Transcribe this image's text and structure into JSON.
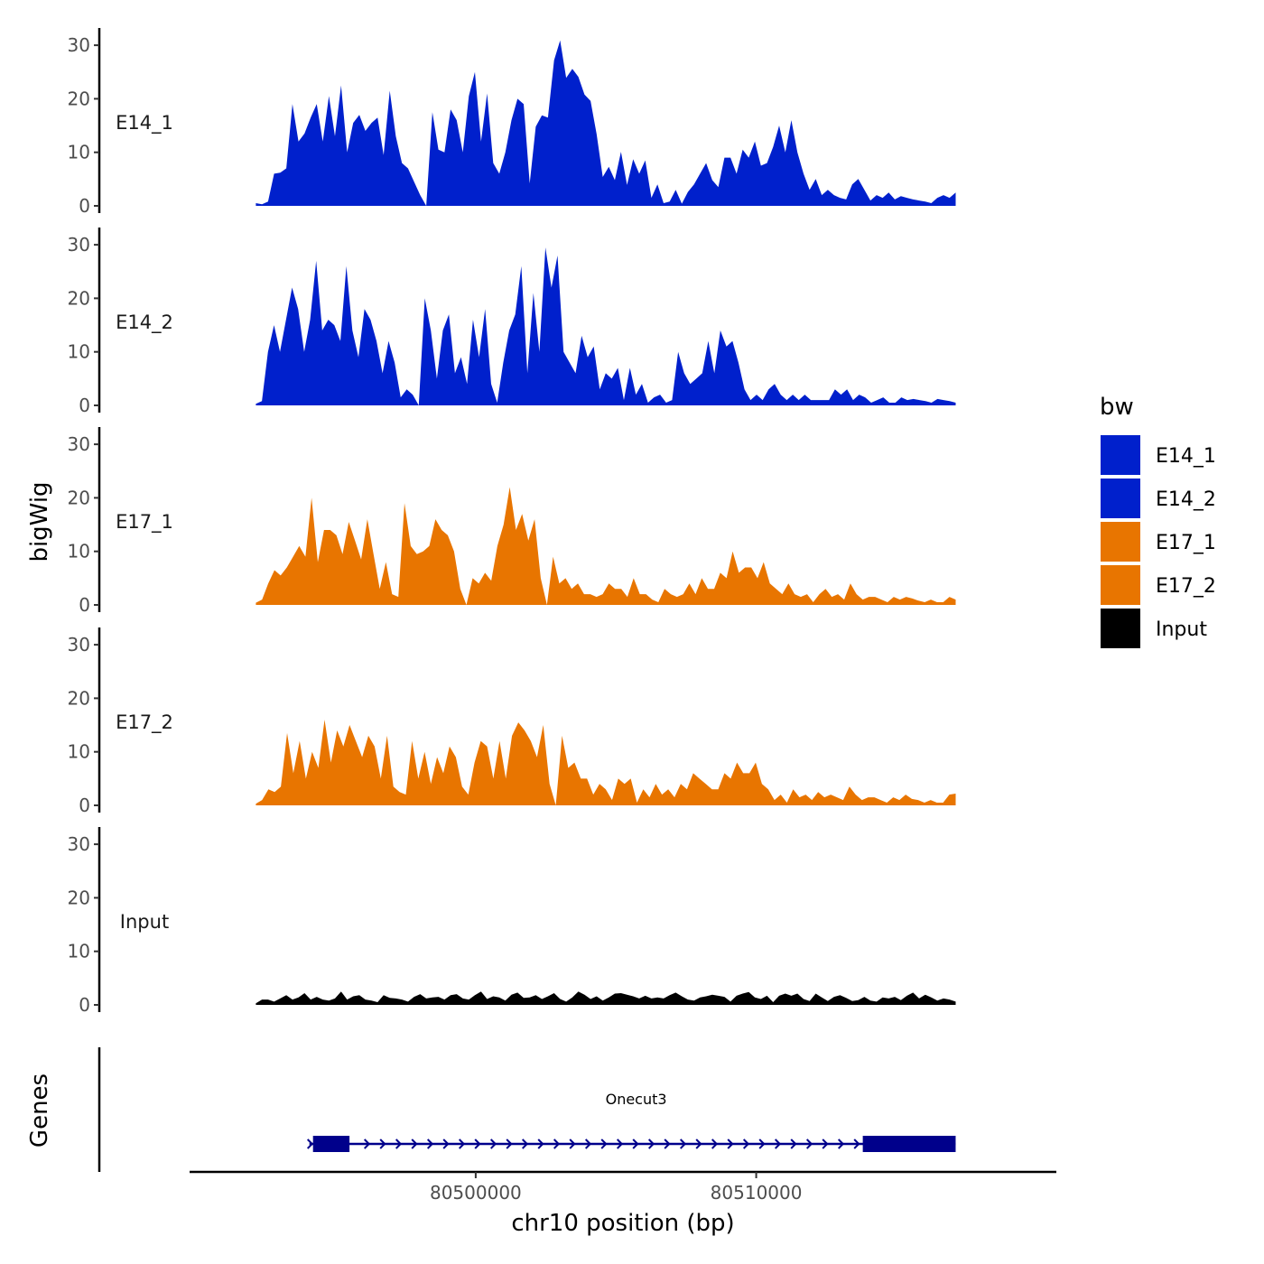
{
  "chart_data": {
    "type": "area",
    "ylabel": "bigWig",
    "genes_label": "Genes",
    "xlabel": "chr10 position (bp)",
    "x_range": [
      80492163,
      80517110
    ],
    "xlim": [
      80489800,
      80520700
    ],
    "x_ticks": [
      80500000,
      80510000
    ],
    "x_tick_labels": [
      "80500000",
      "80510000"
    ],
    "y_range": [
      0,
      31
    ],
    "y_ticks": [
      0,
      10,
      20,
      30
    ],
    "y_tick_labels": [
      "0",
      "10",
      "20",
      "30"
    ],
    "legend_title": "bw",
    "tracks": [
      {
        "name": "E14_1",
        "color": "#0020CC",
        "values": [
          0.5,
          0.3,
          0.8,
          6,
          6.2,
          7,
          19,
          12,
          13.5,
          16.5,
          19,
          12,
          20.5,
          13,
          22.5,
          10,
          15.5,
          17,
          14,
          15.5,
          16.5,
          9.5,
          21.5,
          13,
          8,
          7,
          4.5,
          2,
          0,
          17.5,
          10.5,
          10,
          18,
          16,
          10,
          20.5,
          25,
          12,
          21,
          8,
          6,
          10,
          16,
          20,
          19,
          4.2,
          14.8,
          16.9,
          16.5,
          27.2,
          30.9,
          23.9,
          25.6,
          24.1,
          20.8,
          19.6,
          13.4,
          5.4,
          7.3,
          4.8,
          10.1,
          3.9,
          8.7,
          6,
          8.5,
          1.5,
          4,
          0.5,
          0.8,
          3,
          0.4,
          2.6,
          4,
          6,
          8,
          4.8,
          3.5,
          9,
          9,
          6,
          10.5,
          9,
          12,
          7.5,
          8,
          11,
          15,
          10,
          16,
          10,
          6,
          3,
          5,
          2,
          3,
          2,
          1.5,
          1.2,
          4,
          5,
          3,
          1,
          2,
          1.5,
          2.5,
          1.2,
          1.8,
          1.5,
          1.2,
          1,
          0.8,
          0.5,
          1.5,
          2,
          1.5,
          2.5
        ]
      },
      {
        "name": "E14_2",
        "color": "#0020CC",
        "values": [
          0.3,
          0.8,
          10,
          15,
          10,
          16,
          22,
          18,
          10,
          16,
          27,
          14,
          16,
          15,
          12,
          26,
          14,
          9,
          18,
          16,
          12,
          6,
          12,
          8,
          1.5,
          3,
          2,
          0,
          20,
          14,
          5,
          14,
          17,
          6,
          9,
          4,
          16,
          9,
          18,
          4,
          0.5,
          8,
          14,
          17,
          26,
          6,
          21,
          10,
          29.5,
          22,
          28,
          10,
          8,
          6,
          13,
          9,
          11,
          3,
          6,
          5,
          7,
          1,
          7,
          2,
          4,
          0.5,
          1.5,
          2,
          0.5,
          1,
          10,
          6,
          4,
          5,
          6,
          12,
          6,
          14,
          11,
          12,
          8,
          3,
          1,
          2,
          1,
          3,
          4,
          2,
          1,
          2,
          1,
          2,
          1,
          1,
          1,
          1,
          3,
          2,
          3,
          1,
          2,
          1.5,
          0.5,
          1,
          1.5,
          0.5,
          0.5,
          1.5,
          1,
          1.2,
          1,
          0.8,
          0.5,
          1.2,
          1,
          0.8,
          0.5
        ]
      },
      {
        "name": "E17_1",
        "color": "#E87500",
        "values": [
          0.4,
          1,
          4,
          6.5,
          5.5,
          7,
          9,
          11,
          9,
          20,
          8,
          14,
          14,
          13,
          9.5,
          15.5,
          12,
          8.5,
          16,
          9.5,
          3,
          8,
          2,
          1.5,
          19,
          11,
          9.5,
          10,
          11,
          16,
          14,
          13,
          10,
          3,
          0,
          5,
          4,
          6,
          4.5,
          11,
          15,
          22,
          14,
          17,
          12,
          16,
          5,
          0,
          9,
          4,
          5,
          3,
          4,
          2,
          2,
          1.5,
          2,
          4,
          3,
          3,
          1.5,
          5,
          2,
          2,
          1,
          0.5,
          3,
          2,
          1.5,
          2,
          4,
          2,
          5,
          3,
          3,
          6,
          5,
          10,
          6,
          7,
          7,
          5,
          8,
          4,
          3,
          2,
          4,
          2,
          1.5,
          2,
          0.5,
          2,
          3,
          1.5,
          2,
          1,
          4,
          2,
          1,
          1.5,
          1.5,
          1,
          0.5,
          1.5,
          1,
          1.5,
          1.2,
          0.8,
          0.5,
          1,
          0.5,
          0.5,
          1.5,
          1
        ]
      },
      {
        "name": "E17_2",
        "color": "#E87500",
        "values": [
          0.3,
          1,
          3,
          2.5,
          3.5,
          13.5,
          6,
          12,
          5,
          10,
          7,
          16,
          8,
          14,
          11,
          15,
          12,
          9,
          13,
          11,
          5,
          13,
          3.5,
          2.5,
          2,
          12,
          5,
          10,
          4,
          9,
          6,
          11,
          9,
          3.5,
          2,
          8,
          12,
          11,
          5,
          12,
          5,
          13,
          15.5,
          14,
          12,
          9,
          15,
          4,
          0,
          13,
          7,
          8,
          5,
          5,
          2,
          4,
          3,
          1,
          5,
          4,
          5,
          0.5,
          3,
          1.5,
          4,
          2,
          3,
          1.5,
          4,
          3,
          6,
          5,
          4,
          3,
          3,
          6,
          5,
          8,
          6,
          6,
          8,
          4,
          3,
          1,
          2,
          0.5,
          3,
          1.5,
          2,
          1,
          2.5,
          1.5,
          2,
          1.5,
          1,
          3.5,
          2,
          1,
          1.5,
          1.5,
          1,
          0.5,
          1.5,
          1,
          2,
          1.2,
          1,
          0.5,
          1,
          0.5,
          0.5,
          2,
          2.2
        ]
      },
      {
        "name": "Input",
        "color": "#000000",
        "values": [
          0.3,
          1,
          1,
          0.6,
          1.2,
          1.8,
          1,
          1.4,
          2.2,
          1,
          1.5,
          1,
          0.8,
          1.2,
          2.5,
          1,
          1.6,
          1.8,
          1,
          0.8,
          0.5,
          1.8,
          1.3,
          1.2,
          1,
          0.6,
          1.5,
          2,
          1.2,
          1.4,
          1.5,
          1,
          1.8,
          2,
          1.2,
          1,
          1.8,
          2.5,
          1.1,
          1.6,
          1.4,
          0.8,
          1.9,
          2.3,
          1.3,
          1.4,
          1.8,
          1.1,
          1.6,
          2.2,
          1.1,
          0.6,
          1.4,
          2.5,
          1.9,
          1.1,
          1.6,
          0.8,
          1.4,
          2.1,
          2.2,
          1.9,
          1.6,
          1.2,
          1.7,
          1.2,
          1.4,
          1.2,
          1.8,
          2.3,
          1.6,
          1,
          0.8,
          1.4,
          1.6,
          1.9,
          1.7,
          1.5,
          0.6,
          1.7,
          2.1,
          2.4,
          1.4,
          1.1,
          1.7,
          0.5,
          1.7,
          2.1,
          1.7,
          2.1,
          1.1,
          0.7,
          2.1,
          1.4,
          0.7,
          1.5,
          1.8,
          1.3,
          0.7,
          0.9,
          1.5,
          0.8,
          0.6,
          1.4,
          1.2,
          1.5,
          0.9,
          1.7,
          2.3,
          1.2,
          1.9,
          1.4,
          0.8,
          1.2,
          1,
          0.6
        ]
      }
    ],
    "gene": {
      "name": "Onecut3",
      "strand": "+",
      "start": 80494200,
      "end": 80517110,
      "exons": [
        [
          80494200,
          80495500
        ],
        [
          80513800,
          80517110
        ]
      ]
    }
  }
}
